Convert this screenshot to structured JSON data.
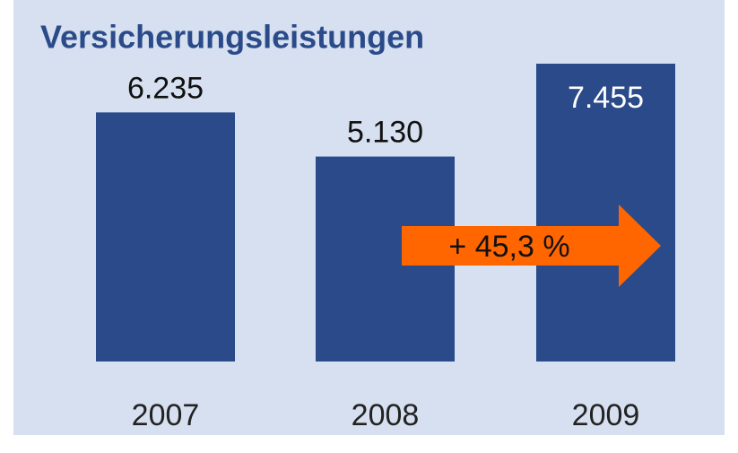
{
  "chart_data": {
    "type": "bar",
    "title": "Versicherungsleistungen",
    "categories": [
      "2007",
      "2008",
      "2009"
    ],
    "values": [
      6235,
      5130,
      7455
    ],
    "value_labels": [
      "6.235",
      "5.130",
      "7.455"
    ],
    "color": "#2a4a8a",
    "annotation": "+ 45,3 %",
    "annotation_color": "#ff6600"
  }
}
